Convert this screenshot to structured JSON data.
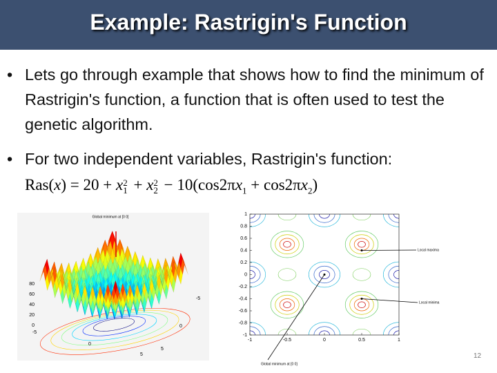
{
  "header": {
    "title": "Example: Rastrigin's Function"
  },
  "bullets": [
    "Lets go through example that shows how to find the minimum of Rastrigin's function, a function that is often used to test the genetic algorithm.",
    "For two independent variables, Rastrigin's function:"
  ],
  "formula": [
    "Ras(",
    "x",
    ") = 20 + ",
    "x",
    "1",
    "2",
    " + ",
    "x",
    "2",
    "2",
    " − 10(cos2π",
    "x",
    "1",
    " + cos2π",
    "x",
    "2",
    ")"
  ],
  "surface_plot": {
    "title": "Global minimum at [0 0]",
    "z_ticks": [
      80,
      60,
      40,
      20,
      0
    ],
    "left_ticks": [
      -5,
      0,
      5
    ],
    "right_ticks": [
      -5,
      0,
      5
    ]
  },
  "contour_plot": {
    "y_ticks": [
      1,
      0.8,
      0.6,
      0.4,
      0.2,
      0,
      -0.2,
      -0.4,
      -0.6,
      -0.8,
      -1
    ],
    "x_ticks": [
      -1,
      -0.5,
      0,
      0.5,
      1
    ],
    "annotations": [
      "Local maxima",
      "Local minima",
      "Global minimum at [0 0]"
    ]
  },
  "page_number": "12"
}
